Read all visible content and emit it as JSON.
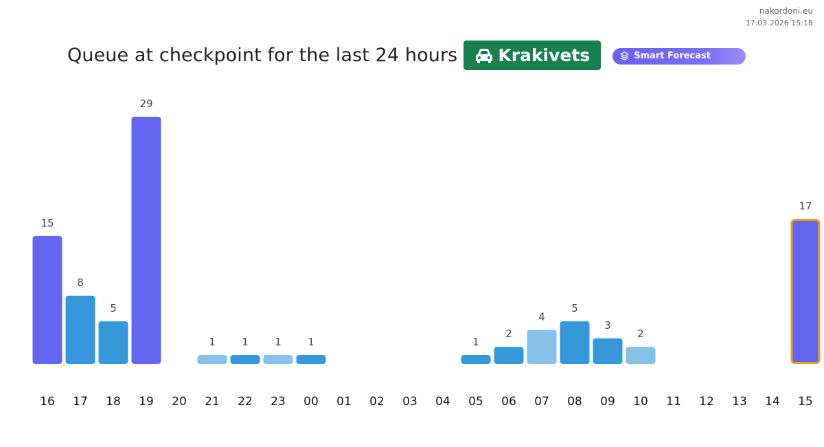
{
  "source": {
    "site": "nakordoni.eu",
    "timestamp": "17.03.2026 15:18"
  },
  "header": {
    "title": "Queue at checkpoint for the last 24 hours",
    "checkpoint": "Krakivets",
    "checkpoint_icon": "car-icon",
    "forecast_label": "Smart Forecast",
    "forecast_icon": "layers-icon"
  },
  "colors": {
    "purple": "#6366f1",
    "blue": "#3498db",
    "light_blue": "#85c1e9",
    "highlight_border": "#f39c12",
    "checkpoint_green": "#19804f",
    "forecast_purple": "#6d5ef0"
  },
  "chart_data": {
    "type": "bar",
    "title": "Queue at checkpoint for the last 24 hours",
    "xlabel": "",
    "ylabel": "",
    "grid": false,
    "categories": [
      "16",
      "17",
      "18",
      "19",
      "20",
      "21",
      "22",
      "23",
      "00",
      "01",
      "02",
      "03",
      "04",
      "05",
      "06",
      "07",
      "08",
      "09",
      "10",
      "11",
      "12",
      "13",
      "14",
      "15"
    ],
    "values": [
      15,
      8,
      5,
      29,
      0,
      1,
      1,
      1,
      1,
      0,
      0,
      0,
      0,
      1,
      2,
      4,
      5,
      3,
      2,
      0,
      0,
      0,
      0,
      17
    ],
    "bar_colors": [
      "purple",
      "blue",
      "blue",
      "purple",
      null,
      "light_blue",
      "blue",
      "light_blue",
      "blue",
      null,
      null,
      null,
      null,
      "blue",
      "blue",
      "light_blue",
      "blue",
      "blue",
      "light_blue",
      null,
      null,
      null,
      null,
      "purple"
    ],
    "highlighted_category": "15"
  }
}
